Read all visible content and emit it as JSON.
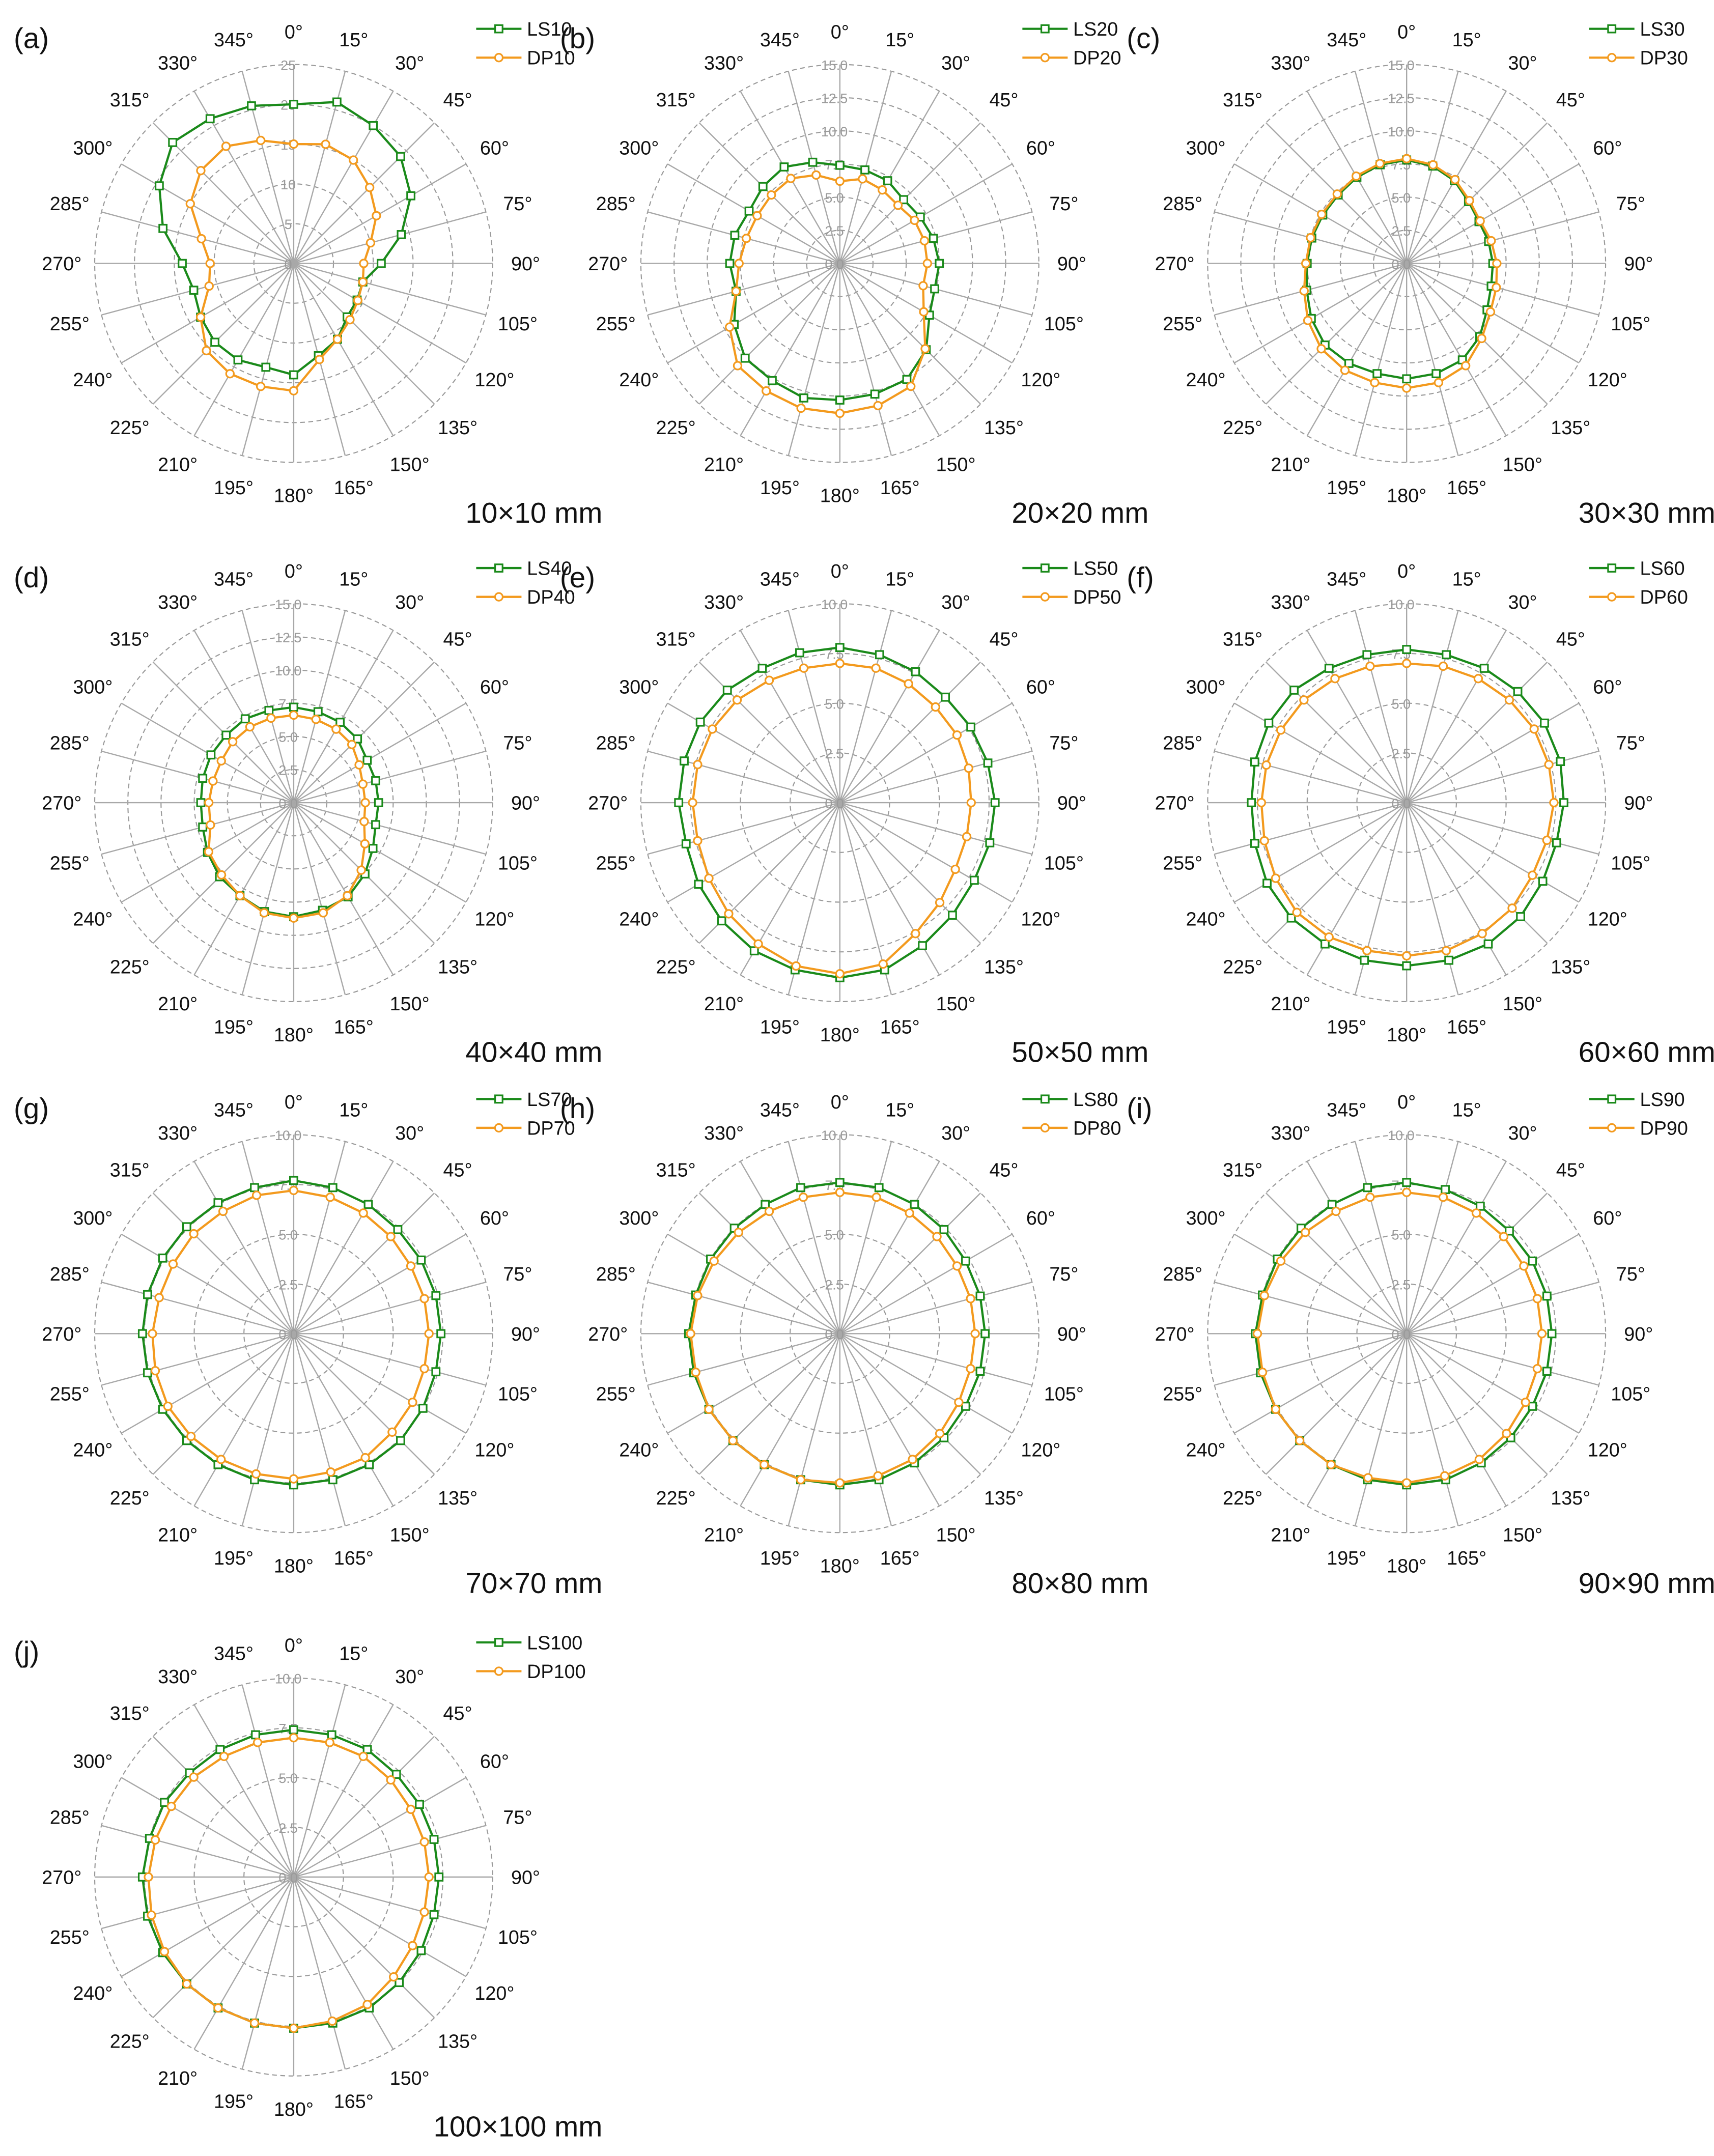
{
  "figure": {
    "type": "polar-grid",
    "panel_count": 10,
    "colors": {
      "LS": "#1a8a1a",
      "DP": "#f39a1e",
      "grid": "#9a9a9a",
      "spoke": "#a8a8a8"
    }
  },
  "chart_data": [
    {
      "type": "polar-line",
      "panel": "(a)",
      "size_label": "10×10 mm",
      "angles": [
        "0°",
        "15°",
        "30°",
        "45°",
        "60°",
        "75°",
        "90°",
        "105°",
        "120°",
        "135°",
        "150°",
        "165°",
        "180°",
        "195°",
        "210°",
        "225°",
        "240°",
        "255°",
        "270°",
        "285°",
        "300°",
        "315°",
        "330°",
        "345°"
      ],
      "r_ticks": [
        "0",
        "5",
        "10",
        "15",
        "20",
        "25"
      ],
      "r_max": 25,
      "series": [
        {
          "name": "LS10",
          "marker": "square",
          "values": [
            20,
            21,
            20,
            19,
            17,
            14,
            11,
            9,
            9.2,
            9.5,
            11,
            12,
            14,
            13.5,
            14,
            14,
            13.5,
            13,
            14,
            17,
            19.5,
            21.5,
            21,
            20.5
          ]
        },
        {
          "name": "DP10",
          "marker": "circle",
          "values": [
            15,
            15.5,
            15,
            13.5,
            12,
            10,
            8.8,
            9,
            9.3,
            10,
            11,
            12.5,
            16,
            16,
            16,
            15.5,
            13.5,
            11,
            10.5,
            12,
            15,
            16.5,
            17,
            16
          ]
        }
      ]
    },
    {
      "type": "polar-line",
      "panel": "(b)",
      "size_label": "20×20 mm",
      "angles": [
        "0°",
        "15°",
        "30°",
        "45°",
        "60°",
        "75°",
        "90°",
        "105°",
        "120°",
        "135°",
        "150°",
        "165°",
        "180°",
        "195°",
        "210°",
        "225°",
        "240°",
        "255°",
        "270°",
        "285°",
        "300°",
        "315°",
        "330°",
        "345°"
      ],
      "r_ticks": [
        "0.0",
        "2.5",
        "5.0",
        "7.5",
        "10.0",
        "12.5",
        "15.0"
      ],
      "r_max": 15,
      "series": [
        {
          "name": "LS20",
          "marker": "square",
          "values": [
            7.4,
            7.3,
            7.2,
            6.8,
            7,
            7.3,
            7.5,
            7.4,
            7.8,
            9.2,
            10.1,
            10.2,
            10.3,
            10.5,
            10.2,
            10.1,
            9.2,
            8.1,
            8.3,
            8.2,
            7.9,
            8.2,
            8.4,
            7.9
          ]
        },
        {
          "name": "DP20",
          "marker": "circle",
          "values": [
            6.2,
            6.6,
            6.4,
            6.2,
            6.5,
            6.6,
            6.6,
            6.5,
            7.3,
            9.1,
            10.7,
            11.1,
            11.3,
            11.3,
            11.1,
            10.9,
            9.6,
            8.1,
            7.6,
            7.3,
            7.2,
            7.3,
            7.4,
            6.9
          ]
        }
      ]
    },
    {
      "type": "polar-line",
      "panel": "(c)",
      "size_label": "30×30 mm",
      "angles": [
        "0°",
        "15°",
        "30°",
        "45°",
        "60°",
        "75°",
        "90°",
        "105°",
        "120°",
        "135°",
        "150°",
        "165°",
        "180°",
        "195°",
        "210°",
        "225°",
        "240°",
        "255°",
        "270°",
        "285°",
        "300°",
        "315°",
        "330°",
        "345°"
      ],
      "r_ticks": [
        "0.0",
        "2.5",
        "5.0",
        "7.5",
        "10.0",
        "12.5",
        "15.0"
      ],
      "r_max": 15,
      "series": [
        {
          "name": "LS30",
          "marker": "square",
          "values": [
            7.8,
            7.6,
            7.2,
            6.6,
            6.3,
            6.4,
            6.5,
            6.6,
            7,
            7.8,
            8.4,
            8.6,
            8.7,
            8.6,
            8.7,
            8.7,
            8.3,
            7.8,
            7.5,
            7.4,
            7.3,
            7.3,
            7.5,
            7.7
          ]
        },
        {
          "name": "DP30",
          "marker": "circle",
          "values": [
            7.9,
            7.7,
            7.3,
            6.7,
            6.4,
            6.6,
            6.8,
            7,
            7.3,
            8,
            8.9,
            9.3,
            9.4,
            9.3,
            9.3,
            9.1,
            8.6,
            8,
            7.6,
            7.5,
            7.4,
            7.4,
            7.6,
            7.8
          ]
        }
      ]
    },
    {
      "type": "polar-line",
      "panel": "(d)",
      "size_label": "40×40 mm",
      "angles": [
        "0°",
        "15°",
        "30°",
        "45°",
        "60°",
        "75°",
        "90°",
        "105°",
        "120°",
        "135°",
        "150°",
        "165°",
        "180°",
        "195°",
        "210°",
        "225°",
        "240°",
        "255°",
        "270°",
        "285°",
        "300°",
        "315°",
        "330°",
        "345°"
      ],
      "r_ticks": [
        "0.0",
        "2.5",
        "5.0",
        "7.5",
        "10.0",
        "12.5",
        "15.0"
      ],
      "r_max": 15,
      "series": [
        {
          "name": "LS40",
          "marker": "square",
          "values": [
            7.2,
            7.1,
            7,
            6.8,
            6.4,
            6.4,
            6.4,
            6.4,
            6.9,
            7.6,
            8.2,
            8.4,
            8.6,
            8.5,
            8.1,
            7.9,
            7.5,
            7.1,
            7,
            7.1,
            7.2,
            7.2,
            7.3,
            7.2
          ]
        },
        {
          "name": "DP40",
          "marker": "circle",
          "values": [
            6.6,
            6.5,
            6.4,
            6.2,
            5.7,
            5.4,
            5.4,
            5.5,
            6.2,
            7.2,
            8.1,
            8.6,
            8.7,
            8.6,
            8.1,
            7.7,
            7.4,
            6.5,
            6.4,
            6.3,
            6.3,
            6.5,
            6.6,
            6.6
          ]
        }
      ]
    },
    {
      "type": "polar-line",
      "panel": "(e)",
      "size_label": "50×50 mm",
      "angles": [
        "0°",
        "15°",
        "30°",
        "45°",
        "60°",
        "75°",
        "90°",
        "105°",
        "120°",
        "135°",
        "150°",
        "165°",
        "180°",
        "195°",
        "210°",
        "225°",
        "240°",
        "255°",
        "270°",
        "285°",
        "300°",
        "315°",
        "330°",
        "345°"
      ],
      "r_ticks": [
        "0.0",
        "2.5",
        "5.0",
        "7.5",
        "10.0"
      ],
      "r_max": 10,
      "series": [
        {
          "name": "LS50",
          "marker": "square",
          "values": [
            7.8,
            7.7,
            7.6,
            7.5,
            7.6,
            7.7,
            7.8,
            7.8,
            7.8,
            8,
            8.3,
            8.7,
            8.8,
            8.7,
            8.6,
            8.4,
            8.2,
            8,
            8.1,
            8.1,
            8.1,
            8,
            7.8,
            7.8
          ]
        },
        {
          "name": "DP50",
          "marker": "circle",
          "values": [
            7,
            7,
            6.9,
            6.8,
            6.8,
            6.7,
            6.6,
            6.6,
            6.7,
            7.1,
            7.6,
            8.4,
            8.6,
            8.5,
            8.2,
            7.9,
            7.6,
            7.4,
            7.4,
            7.4,
            7.4,
            7.3,
            7.1,
            7
          ]
        }
      ]
    },
    {
      "type": "polar-line",
      "panel": "(f)",
      "size_label": "60×60 mm",
      "angles": [
        "0°",
        "15°",
        "30°",
        "45°",
        "60°",
        "75°",
        "90°",
        "105°",
        "120°",
        "135°",
        "150°",
        "165°",
        "180°",
        "195°",
        "210°",
        "225°",
        "240°",
        "255°",
        "270°",
        "285°",
        "300°",
        "315°",
        "330°",
        "345°"
      ],
      "r_ticks": [
        "0.0",
        "2.5",
        "5.0",
        "7.5",
        "10.0"
      ],
      "r_max": 10,
      "series": [
        {
          "name": "LS60",
          "marker": "square",
          "values": [
            7.7,
            7.7,
            7.8,
            7.9,
            8,
            8,
            7.9,
            7.8,
            7.9,
            8.1,
            8.2,
            8.2,
            8.2,
            8.2,
            8.2,
            8.2,
            8.1,
            7.9,
            7.8,
            7.9,
            8,
            8,
            7.8,
            7.7
          ]
        },
        {
          "name": "DP60",
          "marker": "circle",
          "values": [
            7,
            7.1,
            7.2,
            7.3,
            7.4,
            7.4,
            7.4,
            7.3,
            7.3,
            7.5,
            7.6,
            7.7,
            7.7,
            7.7,
            7.8,
            7.8,
            7.6,
            7.4,
            7.3,
            7.3,
            7.3,
            7.3,
            7.2,
            7.1
          ]
        }
      ]
    },
    {
      "type": "polar-line",
      "panel": "(g)",
      "size_label": "70×70 mm",
      "angles": [
        "0°",
        "15°",
        "30°",
        "45°",
        "60°",
        "75°",
        "90°",
        "105°",
        "120°",
        "135°",
        "150°",
        "165°",
        "180°",
        "195°",
        "210°",
        "225°",
        "240°",
        "255°",
        "270°",
        "285°",
        "300°",
        "315°",
        "330°",
        "345°"
      ],
      "r_ticks": [
        "0.0",
        "2.5",
        "5.0",
        "7.5",
        "10.0"
      ],
      "r_max": 10,
      "series": [
        {
          "name": "LS70",
          "marker": "square",
          "values": [
            7.7,
            7.6,
            7.5,
            7.4,
            7.4,
            7.4,
            7.4,
            7.4,
            7.5,
            7.6,
            7.6,
            7.6,
            7.6,
            7.6,
            7.6,
            7.6,
            7.6,
            7.6,
            7.6,
            7.6,
            7.6,
            7.6,
            7.6,
            7.6
          ]
        },
        {
          "name": "DP70",
          "marker": "circle",
          "values": [
            7.2,
            7.1,
            7,
            6.9,
            6.8,
            6.8,
            6.8,
            6.8,
            6.9,
            7,
            7.2,
            7.2,
            7.3,
            7.3,
            7.3,
            7.3,
            7.3,
            7.2,
            7.1,
            7,
            7,
            7.1,
            7.1,
            7.2
          ]
        }
      ]
    },
    {
      "type": "polar-line",
      "panel": "(h)",
      "size_label": "80×80 mm",
      "angles": [
        "0°",
        "15°",
        "30°",
        "45°",
        "60°",
        "75°",
        "90°",
        "105°",
        "120°",
        "135°",
        "150°",
        "165°",
        "180°",
        "195°",
        "210°",
        "225°",
        "240°",
        "255°",
        "270°",
        "285°",
        "300°",
        "315°",
        "330°",
        "345°"
      ],
      "r_ticks": [
        "0.0",
        "2.5",
        "5.0",
        "7.5",
        "10.0"
      ],
      "r_max": 10,
      "series": [
        {
          "name": "LS80",
          "marker": "square",
          "values": [
            7.6,
            7.6,
            7.5,
            7.4,
            7.3,
            7.3,
            7.3,
            7.3,
            7.3,
            7.4,
            7.5,
            7.6,
            7.6,
            7.6,
            7.6,
            7.6,
            7.6,
            7.6,
            7.6,
            7.5,
            7.5,
            7.5,
            7.5,
            7.6
          ]
        },
        {
          "name": "DP80",
          "marker": "circle",
          "values": [
            7.1,
            7.1,
            7,
            6.9,
            6.8,
            6.8,
            6.8,
            6.8,
            6.9,
            7.1,
            7.3,
            7.4,
            7.5,
            7.6,
            7.6,
            7.6,
            7.6,
            7.5,
            7.5,
            7.4,
            7.3,
            7.2,
            7.1,
            7.1
          ]
        }
      ]
    },
    {
      "type": "polar-line",
      "panel": "(i)",
      "size_label": "90×90 mm",
      "angles": [
        "0°",
        "15°",
        "30°",
        "45°",
        "60°",
        "75°",
        "90°",
        "105°",
        "120°",
        "135°",
        "150°",
        "165°",
        "180°",
        "195°",
        "210°",
        "225°",
        "240°",
        "255°",
        "270°",
        "285°",
        "300°",
        "315°",
        "330°",
        "345°"
      ],
      "r_ticks": [
        "0.0",
        "2.5",
        "5.0",
        "7.5",
        "10.0"
      ],
      "r_max": 10,
      "series": [
        {
          "name": "LS90",
          "marker": "square",
          "values": [
            7.6,
            7.5,
            7.4,
            7.3,
            7.3,
            7.3,
            7.3,
            7.3,
            7.3,
            7.4,
            7.5,
            7.6,
            7.6,
            7.6,
            7.6,
            7.6,
            7.6,
            7.6,
            7.6,
            7.5,
            7.5,
            7.5,
            7.5,
            7.6
          ]
        },
        {
          "name": "DP90",
          "marker": "circle",
          "values": [
            7.1,
            7.1,
            7,
            6.9,
            6.8,
            6.8,
            6.8,
            6.8,
            6.9,
            7.1,
            7.3,
            7.4,
            7.5,
            7.5,
            7.6,
            7.6,
            7.6,
            7.5,
            7.5,
            7.4,
            7.3,
            7.2,
            7.1,
            7.1
          ]
        }
      ]
    },
    {
      "type": "polar-line",
      "panel": "(j)",
      "size_label": "100×100 mm",
      "angles": [
        "0°",
        "15°",
        "30°",
        "45°",
        "60°",
        "75°",
        "90°",
        "105°",
        "120°",
        "135°",
        "150°",
        "165°",
        "180°",
        "195°",
        "210°",
        "225°",
        "240°",
        "255°",
        "270°",
        "285°",
        "300°",
        "315°",
        "330°",
        "345°"
      ],
      "r_ticks": [
        "0.0",
        "2.5",
        "5.0",
        "7.5",
        "10.0"
      ],
      "r_max": 10,
      "series": [
        {
          "name": "LS100",
          "marker": "square",
          "values": [
            7.4,
            7.4,
            7.4,
            7.3,
            7.3,
            7.3,
            7.3,
            7.3,
            7.4,
            7.5,
            7.6,
            7.6,
            7.6,
            7.6,
            7.6,
            7.6,
            7.6,
            7.6,
            7.6,
            7.5,
            7.5,
            7.4,
            7.4,
            7.4
          ]
        },
        {
          "name": "DP100",
          "marker": "circle",
          "values": [
            7,
            7,
            7,
            6.9,
            6.8,
            6.8,
            6.8,
            6.8,
            6.9,
            7.1,
            7.4,
            7.5,
            7.6,
            7.6,
            7.6,
            7.6,
            7.5,
            7.4,
            7.3,
            7.2,
            7.1,
            7.1,
            7,
            7
          ]
        }
      ]
    }
  ]
}
